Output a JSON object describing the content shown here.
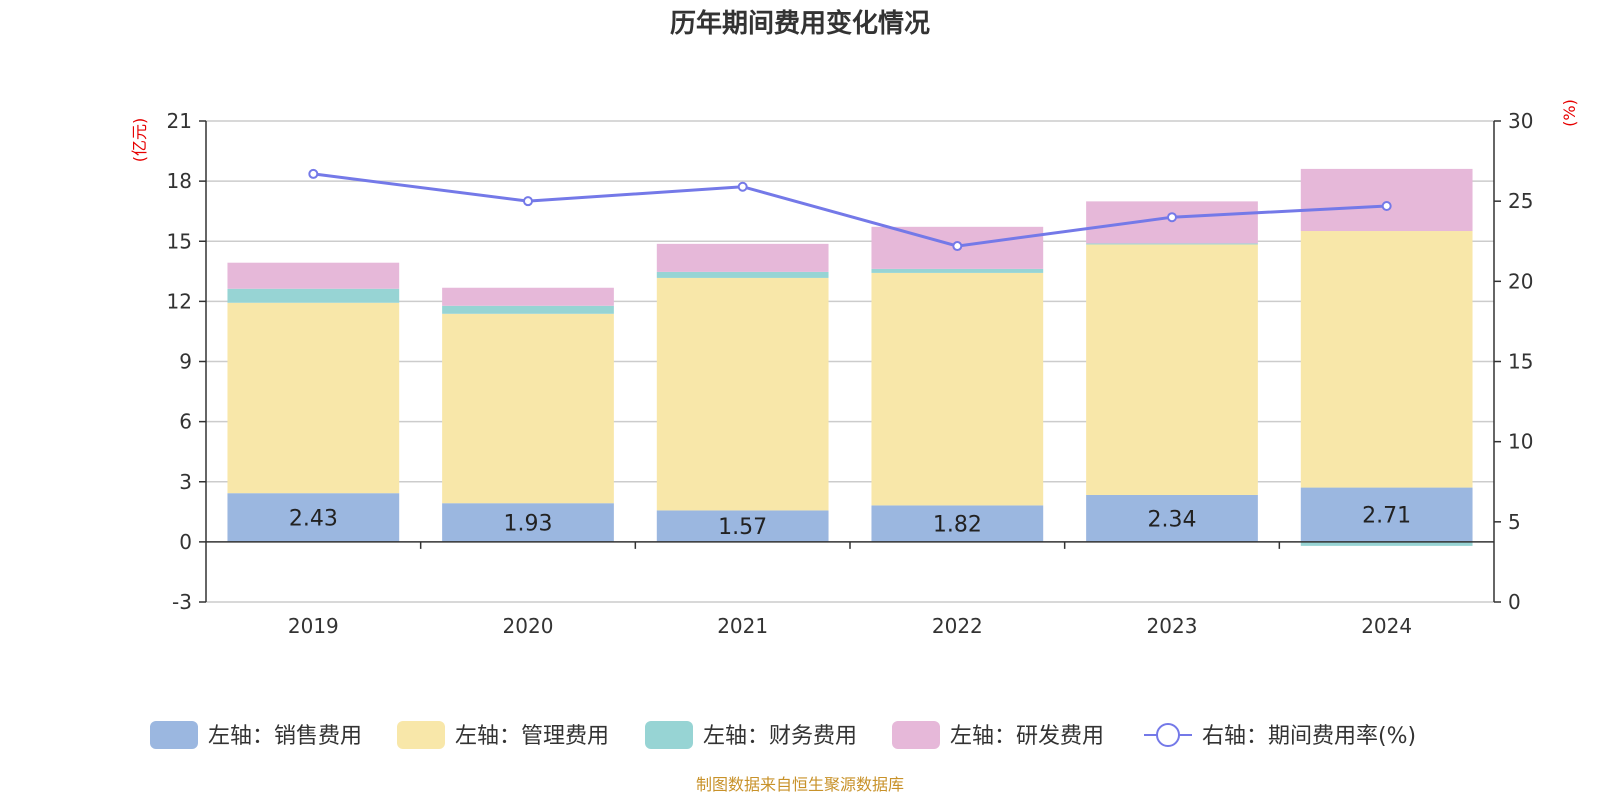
{
  "chart_data": {
    "type": "bar",
    "title": "历年期间费用变化情况",
    "categories": [
      "2019",
      "2020",
      "2021",
      "2022",
      "2023",
      "2024"
    ],
    "left_axis": {
      "unit": "(亿元)",
      "ylim": [
        -3,
        21
      ],
      "ticks": [
        -3,
        0,
        3,
        6,
        9,
        12,
        15,
        18,
        21
      ]
    },
    "right_axis": {
      "unit": "(%)",
      "ylim": [
        0,
        30
      ],
      "ticks": [
        0,
        5,
        10,
        15,
        20,
        25,
        30
      ]
    },
    "stacked": true,
    "series": [
      {
        "name": "左轴：销售费用",
        "axis": "left",
        "color": "#9bb7e0",
        "values": [
          2.43,
          1.93,
          1.57,
          1.82,
          2.34,
          2.71
        ],
        "labels": [
          "2.43",
          "1.93",
          "1.57",
          "1.82",
          "2.34",
          "2.71"
        ]
      },
      {
        "name": "左轴：管理费用",
        "axis": "left",
        "color": "#f8e7a9",
        "values": [
          9.5,
          9.45,
          11.6,
          11.6,
          12.5,
          12.8
        ]
      },
      {
        "name": "左轴：财务费用",
        "axis": "left",
        "color": "#97d4d4",
        "values": [
          0.7,
          0.4,
          0.3,
          0.2,
          0.05,
          -0.2
        ]
      },
      {
        "name": "左轴：研发费用",
        "axis": "left",
        "color": "#e6b8d9",
        "values": [
          1.3,
          0.9,
          1.4,
          2.1,
          2.1,
          3.1
        ]
      },
      {
        "name": "右轴：期间费用率(%)",
        "axis": "right",
        "type": "line",
        "color": "#7479e8",
        "values": [
          26.7,
          25.0,
          25.9,
          22.2,
          24.0,
          24.7
        ]
      }
    ],
    "grid": true,
    "legend_position": "bottom"
  },
  "footer": {
    "source": "制图数据来自恒生聚源数据库"
  }
}
